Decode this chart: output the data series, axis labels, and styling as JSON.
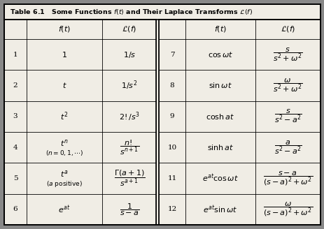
{
  "bg_color": "#888888",
  "table_bg": "#f0ede5",
  "title_text": "Table 6.1   Some Functions ",
  "left_data": [
    {
      "num": "1",
      "ft": "$1$",
      "lf": "$1/s$",
      "multiline": false
    },
    {
      "num": "2",
      "ft": "$t$",
      "lf": "$1/s^2$",
      "multiline": false
    },
    {
      "num": "3",
      "ft": "$t^2$",
      "lf": "$2!/s^3$",
      "multiline": false
    },
    {
      "num": "4",
      "ft1": "$t^n$",
      "ft2": "$(n = 0, 1, \\cdots)$",
      "lf": "$\\dfrac{n!}{s^{n+1}}$",
      "multiline": true
    },
    {
      "num": "5",
      "ft1": "$t^a$",
      "ft2": "$(a \\mathrm{\\ positive})$",
      "lf": "$\\dfrac{\\Gamma(a+1)}{s^{a+1}}$",
      "multiline": true
    },
    {
      "num": "6",
      "ft": "$e^{at}$",
      "lf": "$\\dfrac{1}{s-a}$",
      "multiline": false
    }
  ],
  "right_data": [
    {
      "num": "7",
      "ft": "$\\cos\\omega t$",
      "lf": "$\\dfrac{s}{s^2+\\omega^2}$"
    },
    {
      "num": "8",
      "ft": "$\\sin\\omega t$",
      "lf": "$\\dfrac{\\omega}{s^2+\\omega^2}$"
    },
    {
      "num": "9",
      "ft": "$\\cosh at$",
      "lf": "$\\dfrac{s}{s^2-a^2}$"
    },
    {
      "num": "10",
      "ft": "$\\sinh at$",
      "lf": "$\\dfrac{a}{s^2-a^2}$"
    },
    {
      "num": "11",
      "ft": "$e^{at}\\cos\\omega t$",
      "lf": "$\\dfrac{s-a}{(s-a)^2+\\omega^2}$"
    },
    {
      "num": "12",
      "ft": "$e^{at}\\sin\\omega t$",
      "lf": "$\\dfrac{\\omega}{(s-a)^2+\\omega^2}$"
    }
  ]
}
